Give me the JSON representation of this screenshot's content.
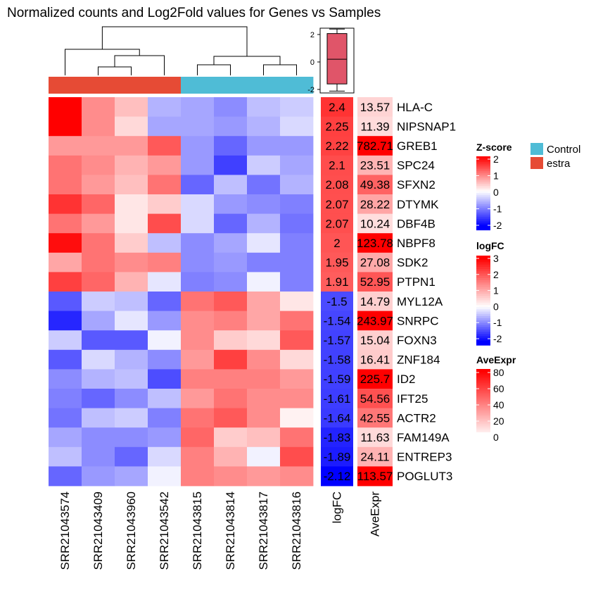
{
  "chart_data": {
    "type": "heatmap",
    "title": "Normalized counts and Log2Fold values for Genes vs Samples",
    "samples": [
      "SRR21043574",
      "SRR21043409",
      "SRR21043960",
      "SRR21043542",
      "SRR21043815",
      "SRR21043814",
      "SRR21043817",
      "SRR21043816"
    ],
    "sample_groups": [
      "estra",
      "estra",
      "estra",
      "estra",
      "Control",
      "Control",
      "Control",
      "Control"
    ],
    "group_legend": [
      {
        "label": "Control",
        "color": "#4fbcd6"
      },
      {
        "label": "estra",
        "color": "#e64b35"
      }
    ],
    "genes": [
      "HLA-C",
      "NIPSNAP1",
      "GREB1",
      "SPC24",
      "SFXN2",
      "DTYMK",
      "DBF4B",
      "NBPF8",
      "SDK2",
      "PTPN1",
      "MYL12A",
      "SNRPC",
      "FOXN3",
      "ZNF184",
      "ID2",
      "IFT25",
      "ACTR2",
      "FAM149A",
      "ENTREP3",
      "POGLUT3"
    ],
    "zscore": [
      [
        2.0,
        0.9,
        0.5,
        -0.6,
        -0.7,
        -0.9,
        -0.5,
        -0.4
      ],
      [
        2.0,
        0.9,
        0.3,
        -0.7,
        -0.7,
        -0.8,
        -0.6,
        -0.3
      ],
      [
        0.8,
        0.8,
        0.8,
        1.3,
        -0.8,
        -1.2,
        -0.8,
        -0.8
      ],
      [
        1.1,
        0.9,
        0.6,
        0.8,
        -0.8,
        -1.5,
        -0.4,
        -0.7
      ],
      [
        1.1,
        0.8,
        0.5,
        1.1,
        -1.2,
        -0.5,
        -1.1,
        -0.6
      ],
      [
        1.6,
        1.2,
        0.2,
        0.4,
        -0.3,
        -0.8,
        -0.9,
        -1.0
      ],
      [
        1.1,
        0.8,
        0.2,
        1.4,
        -0.3,
        -1.2,
        -0.6,
        -1.1
      ],
      [
        1.9,
        1.1,
        0.4,
        -0.5,
        -0.9,
        -0.7,
        -0.2,
        -1.0
      ],
      [
        0.7,
        1.1,
        0.9,
        1.0,
        -0.9,
        -0.8,
        -1.0,
        -1.0
      ],
      [
        1.5,
        1.2,
        0.6,
        -0.2,
        -1.0,
        -0.9,
        -0.1,
        -1.0
      ],
      [
        -1.3,
        -0.4,
        -0.5,
        -1.2,
        1.1,
        1.3,
        0.7,
        0.2
      ],
      [
        -1.7,
        -0.7,
        -0.2,
        -0.8,
        0.9,
        1.0,
        0.7,
        1.1
      ],
      [
        -0.4,
        -1.3,
        -1.3,
        -0.1,
        0.9,
        0.4,
        0.3,
        1.3
      ],
      [
        -1.3,
        -0.3,
        -0.6,
        -0.9,
        0.8,
        1.5,
        0.9,
        0.3
      ],
      [
        -0.9,
        -0.6,
        -0.5,
        -1.4,
        1.0,
        1.0,
        1.0,
        0.8
      ],
      [
        -1.0,
        -1.2,
        -0.9,
        -0.5,
        0.8,
        1.1,
        0.9,
        0.9
      ],
      [
        -1.1,
        -0.5,
        -0.4,
        -1.0,
        1.1,
        1.3,
        0.9,
        0.1
      ],
      [
        -0.7,
        -0.9,
        -0.9,
        -0.8,
        1.2,
        0.4,
        0.5,
        1.1
      ],
      [
        -0.5,
        -0.9,
        -1.2,
        -0.3,
        1.0,
        0.6,
        -0.1,
        1.4
      ],
      [
        -1.2,
        -0.8,
        -0.7,
        -0.1,
        1.0,
        0.9,
        0.8,
        0.9
      ]
    ],
    "logFC": [
      2.4,
      2.25,
      2.22,
      2.1,
      2.08,
      2.07,
      2.07,
      2,
      1.95,
      1.91,
      -1.5,
      -1.54,
      -1.57,
      -1.58,
      -1.59,
      -1.61,
      -1.64,
      -1.83,
      -1.89,
      -2.12
    ],
    "AveExpr": [
      13.57,
      11.39,
      782.71,
      23.51,
      49.38,
      28.22,
      10.24,
      123.78,
      27.08,
      52.95,
      14.79,
      243.97,
      15.04,
      16.41,
      225.7,
      54.56,
      42.55,
      11.63,
      24.11,
      113.57
    ],
    "column_labels": {
      "logFC": "logFC",
      "AveExpr": "AveExpr"
    },
    "boxplot": {
      "min": -2.12,
      "q1": -1.6,
      "median": 0.2,
      "q3": 2.07,
      "max": 2.4,
      "ticks": [
        2,
        0,
        -2
      ]
    },
    "legends": {
      "zscore": {
        "title": "Z-score",
        "ticks": [
          "2",
          "1",
          "0",
          "-1",
          "-2"
        ],
        "range": [
          -2,
          2
        ]
      },
      "logFC": {
        "title": "logFC",
        "ticks": [
          "3",
          "2",
          "1",
          "0",
          "-1",
          "-2"
        ],
        "range": [
          -2.12,
          3
        ]
      },
      "AveExpr": {
        "title": "AveExpr",
        "ticks": [
          "80",
          "60",
          "40",
          "20",
          "0"
        ],
        "range": [
          0,
          80
        ]
      }
    },
    "colors": {
      "low": "#0000ff",
      "mid": "#ffffff",
      "high": "#ff0000",
      "box_fill": "#e05569"
    },
    "legend_placement": "right",
    "grid": false
  }
}
